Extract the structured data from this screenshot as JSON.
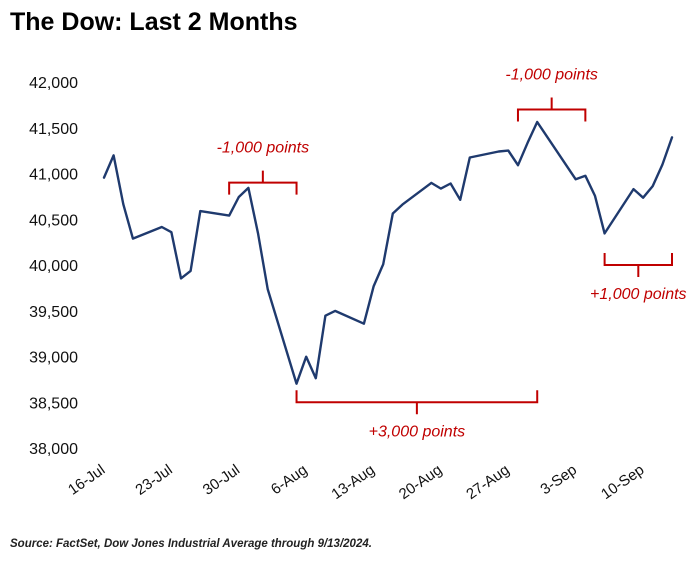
{
  "chart_data": {
    "type": "line",
    "title": "The Dow: Last 2 Months",
    "xlabel": "",
    "ylabel": "",
    "ylim": [
      38000,
      42000
    ],
    "yticks": [
      38000,
      38500,
      39000,
      39500,
      40000,
      40500,
      41000,
      41500,
      42000
    ],
    "ytick_labels": [
      "38,000",
      "38,500",
      "39,000",
      "39,500",
      "40,000",
      "40,500",
      "41,000",
      "41,500",
      "42,000"
    ],
    "xticks": [
      "16-Jul",
      "23-Jul",
      "30-Jul",
      "6-Aug",
      "13-Aug",
      "20-Aug",
      "27-Aug",
      "3-Sep",
      "10-Sep"
    ],
    "grid": false,
    "line_color": "#1F3A6E",
    "series": [
      {
        "x": [
          "2024-07-16",
          "2024-07-17",
          "2024-07-18",
          "2024-07-19",
          "2024-07-22",
          "2024-07-23",
          "2024-07-24",
          "2024-07-25",
          "2024-07-26",
          "2024-07-29",
          "2024-07-30",
          "2024-07-31",
          "2024-08-01",
          "2024-08-02",
          "2024-08-05",
          "2024-08-06",
          "2024-08-07",
          "2024-08-08",
          "2024-08-09",
          "2024-08-12",
          "2024-08-13",
          "2024-08-14",
          "2024-08-15",
          "2024-08-16",
          "2024-08-19",
          "2024-08-20",
          "2024-08-21",
          "2024-08-22",
          "2024-08-23",
          "2024-08-26",
          "2024-08-27",
          "2024-08-28",
          "2024-08-29",
          "2024-08-30",
          "2024-09-03",
          "2024-09-04",
          "2024-09-05",
          "2024-09-06",
          "2024-09-09",
          "2024-09-10",
          "2024-09-11",
          "2024-09-12",
          "2024-09-13"
        ],
        "values": [
          40955,
          41198,
          40665,
          40288,
          40415,
          40358,
          39854,
          39935,
          40589,
          40540,
          40743,
          40843,
          40347,
          39737,
          38703,
          38998,
          38763,
          39446,
          39498,
          39358,
          39766,
          40008,
          40563,
          40660,
          40897,
          40835,
          40891,
          40713,
          41175,
          41240,
          41250,
          41091,
          41335,
          41563,
          40937,
          40975,
          40755,
          40345,
          40830,
          40736,
          40862,
          41097,
          41394
        ]
      }
    ],
    "annotations": [
      {
        "text": "-1,000 points",
        "color": "#C00000",
        "x_from": "2024-07-29",
        "x_to": "2024-08-05",
        "value_level": 40900,
        "side": "above"
      },
      {
        "text": "+3,000 points",
        "color": "#C00000",
        "x_from": "2024-08-05",
        "x_to": "2024-08-30",
        "value_level": 38500,
        "side": "below"
      },
      {
        "text": "-1,000 points",
        "color": "#C00000",
        "x_from": "2024-08-28",
        "x_to": "2024-09-04",
        "value_level": 41700,
        "side": "above"
      },
      {
        "text": "+1,000 points",
        "color": "#C00000",
        "x_from": "2024-09-06",
        "x_to": "2024-09-13",
        "value_level": 40000,
        "side": "below"
      }
    ]
  },
  "source": "Source: FactSet, Dow Jones Industrial Average through 9/13/2024."
}
